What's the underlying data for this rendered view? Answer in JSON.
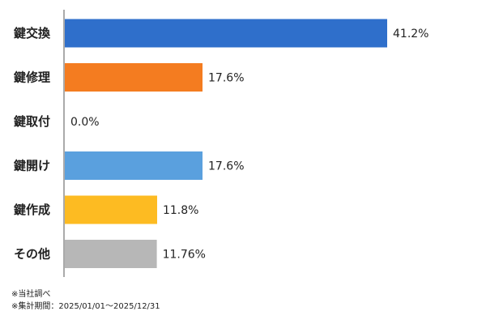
{
  "chart_data": {
    "type": "bar",
    "orientation": "horizontal",
    "categories": [
      "鍵交換",
      "鍵修理",
      "鍵取付",
      "鍵開け",
      "鍵作成",
      "その他"
    ],
    "values": [
      41.2,
      17.6,
      0.0,
      17.6,
      11.8,
      11.76
    ],
    "value_labels": [
      "41.2%",
      "17.6%",
      "0.0%",
      "17.6%",
      "11.8%",
      "11.76%"
    ],
    "colors": [
      "#2f6fcb",
      "#f47c20",
      "#2f6fcb",
      "#5aa0de",
      "#fdbb22",
      "#b7b7b7"
    ],
    "xlim": [
      0,
      41.2
    ],
    "grid": false,
    "title": "",
    "xlabel": "",
    "ylabel": ""
  },
  "notes": {
    "source": "※当社調べ",
    "period": "※集計期間：2025/01/01～2025/12/31"
  }
}
